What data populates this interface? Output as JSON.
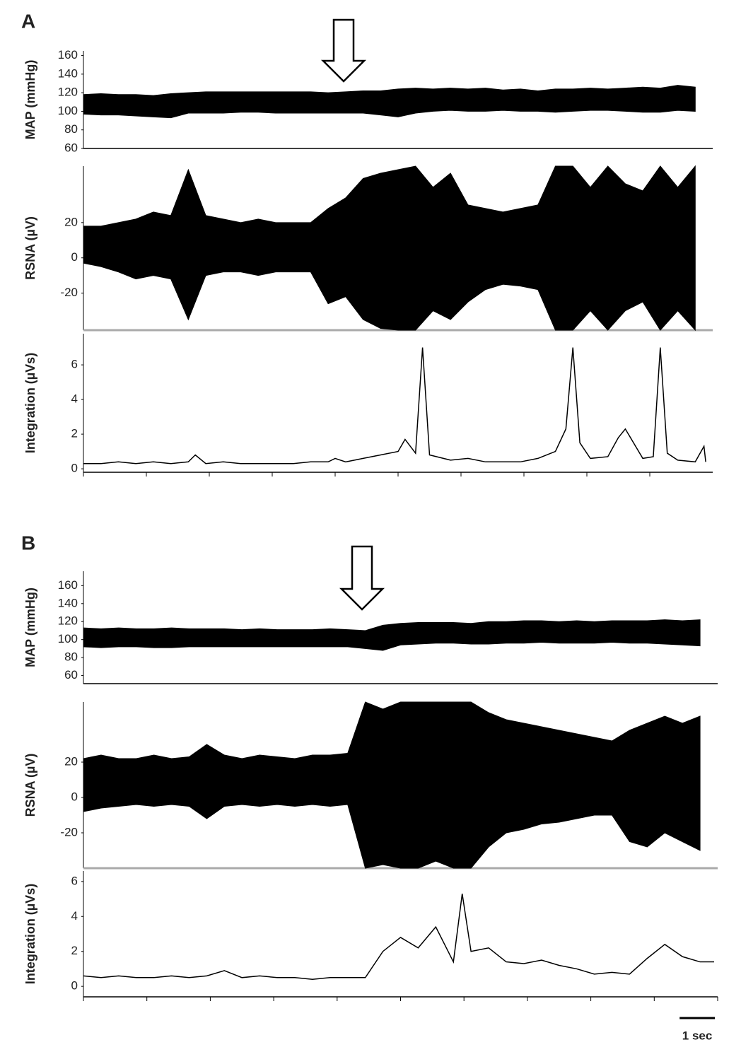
{
  "panel_labels": [
    "A",
    "B"
  ],
  "scale_bar": {
    "value": 1,
    "label": "1 sec"
  },
  "chart_data": [
    {
      "type": "band",
      "y_label": "MAP (mmHg)",
      "xlim": [
        0,
        18
      ],
      "ylim": [
        60,
        165
      ],
      "yticks": [
        60,
        80,
        100,
        120,
        140,
        160
      ],
      "x": [
        0,
        0.5,
        1,
        1.5,
        2,
        2.5,
        3,
        3.5,
        4,
        4.5,
        5,
        5.5,
        6,
        6.5,
        7,
        7.5,
        8,
        8.5,
        9,
        9.5,
        10,
        10.5,
        11,
        11.5,
        12,
        12.5,
        13,
        13.5,
        14,
        14.5,
        15,
        15.5,
        16,
        16.5,
        17,
        17.5
      ],
      "series": [
        {
          "color": "#000000",
          "values": [
            118,
            119,
            118,
            118,
            117,
            119,
            120,
            121,
            121,
            121,
            121,
            121,
            121,
            121,
            120,
            121,
            122,
            122,
            124,
            125,
            124,
            125,
            124,
            125,
            123,
            124,
            122,
            124,
            124,
            125,
            124,
            125,
            126,
            125,
            128,
            126
          ]
        },
        {
          "color": "#000000",
          "values": [
            97,
            96,
            96,
            95,
            94,
            93,
            98,
            98,
            98,
            99,
            99,
            98,
            98,
            98,
            98,
            98,
            98,
            96,
            94,
            98,
            100,
            101,
            100,
            100,
            101,
            100,
            100,
            99,
            100,
            101,
            101,
            100,
            99,
            99,
            101,
            100
          ]
        }
      ]
    },
    {
      "type": "band",
      "y_label": "RSNA (µV)",
      "xlim": [
        0,
        18
      ],
      "ylim": [
        -41,
        52
      ],
      "yticks": [
        -20,
        0,
        20
      ],
      "x": [
        0,
        0.5,
        1,
        1.5,
        2,
        2.5,
        3,
        3.5,
        4,
        4.5,
        5,
        5.5,
        6,
        6.5,
        7,
        7.5,
        8,
        8.5,
        9,
        9.5,
        10,
        10.5,
        11,
        11.5,
        12,
        12.5,
        13,
        13.5,
        14,
        14.5,
        15,
        15.5,
        16,
        16.5,
        17,
        17.5
      ],
      "series": [
        {
          "color": "#000000",
          "values": [
            18,
            18,
            20,
            22,
            26,
            24,
            50,
            24,
            22,
            20,
            22,
            20,
            20,
            20,
            28,
            34,
            45,
            48,
            50,
            52,
            40,
            48,
            30,
            28,
            26,
            28,
            30,
            52,
            52,
            40,
            52,
            42,
            38,
            52,
            40,
            52
          ]
        },
        {
          "color": "#000000",
          "values": [
            -3,
            -5,
            -8,
            -12,
            -10,
            -12,
            -35,
            -10,
            -8,
            -8,
            -10,
            -8,
            -8,
            -8,
            -26,
            -22,
            -35,
            -40,
            -41,
            -41,
            -30,
            -35,
            -25,
            -18,
            -15,
            -16,
            -18,
            -41,
            -41,
            -30,
            -41,
            -30,
            -25,
            -41,
            -30,
            -41
          ]
        }
      ]
    },
    {
      "type": "line",
      "y_label": "Integration (µVs)",
      "xlim": [
        0,
        18
      ],
      "ylim": [
        -0.2,
        7.8
      ],
      "yticks": [
        0,
        2,
        4,
        6
      ],
      "xticks": [
        0,
        1.8,
        3.6,
        5.4,
        7.2,
        9,
        10.8,
        12.6,
        14.4,
        16.2
      ],
      "x": [
        0,
        0.5,
        1,
        1.5,
        2,
        2.5,
        3,
        3.2,
        3.5,
        4,
        4.5,
        5,
        5.5,
        6,
        6.5,
        7,
        7.2,
        7.5,
        8,
        8.5,
        9,
        9.2,
        9.5,
        9.7,
        9.9,
        10.5,
        11,
        11.5,
        12,
        12.5,
        13,
        13.5,
        13.8,
        14.0,
        14.2,
        14.5,
        15,
        15.3,
        15.5,
        16,
        16.3,
        16.5,
        16.7,
        17,
        17.5,
        17.75,
        17.8
      ],
      "series": [
        {
          "color": "#000000",
          "values": [
            0.3,
            0.3,
            0.4,
            0.3,
            0.4,
            0.3,
            0.4,
            0.8,
            0.3,
            0.4,
            0.3,
            0.3,
            0.3,
            0.3,
            0.4,
            0.4,
            0.6,
            0.4,
            0.6,
            0.8,
            1.0,
            1.7,
            0.9,
            7.0,
            0.8,
            0.5,
            0.6,
            0.4,
            0.4,
            0.4,
            0.6,
            1.0,
            2.3,
            7.0,
            1.5,
            0.6,
            0.7,
            1.8,
            2.3,
            0.6,
            0.7,
            7.0,
            0.9,
            0.5,
            0.4,
            1.3,
            0.4
          ]
        }
      ]
    },
    {
      "type": "band",
      "y_label": "MAP (mmHg)",
      "xlim": [
        0,
        18
      ],
      "ylim": [
        51,
        176
      ],
      "yticks": [
        60,
        80,
        100,
        120,
        140,
        160
      ],
      "x": [
        0,
        0.5,
        1,
        1.5,
        2,
        2.5,
        3,
        3.5,
        4,
        4.5,
        5,
        5.5,
        6,
        6.5,
        7,
        7.5,
        8,
        8.5,
        9,
        9.5,
        10,
        10.5,
        11,
        11.5,
        12,
        12.5,
        13,
        13.5,
        14,
        14.5,
        15,
        15.5,
        16,
        16.5,
        17,
        17.5
      ],
      "series": [
        {
          "color": "#000000",
          "values": [
            113,
            112,
            113,
            112,
            112,
            113,
            112,
            112,
            112,
            111,
            112,
            111,
            111,
            111,
            112,
            111,
            110,
            116,
            118,
            119,
            119,
            119,
            118,
            120,
            120,
            121,
            121,
            120,
            121,
            120,
            121,
            121,
            121,
            122,
            121,
            122
          ]
        },
        {
          "color": "#000000",
          "values": [
            92,
            91,
            92,
            92,
            91,
            91,
            92,
            92,
            92,
            92,
            92,
            92,
            92,
            92,
            92,
            92,
            90,
            88,
            94,
            95,
            96,
            96,
            95,
            95,
            96,
            96,
            97,
            96,
            96,
            96,
            97,
            96,
            96,
            95,
            94,
            93
          ]
        }
      ]
    },
    {
      "type": "band",
      "y_label": "RSNA (µV)",
      "xlim": [
        0,
        18
      ],
      "ylim": [
        -40,
        54
      ],
      "yticks": [
        -20,
        0,
        20
      ],
      "x": [
        0,
        0.5,
        1,
        1.5,
        2,
        2.5,
        3,
        3.5,
        4,
        4.5,
        5,
        5.5,
        6,
        6.5,
        7,
        7.5,
        8,
        8.5,
        9,
        9.5,
        10,
        10.5,
        11,
        11.5,
        12,
        12.5,
        13,
        13.5,
        14,
        14.5,
        15,
        15.5,
        16,
        16.5,
        17,
        17.5
      ],
      "series": [
        {
          "color": "#000000",
          "values": [
            22,
            24,
            22,
            22,
            24,
            22,
            23,
            30,
            24,
            22,
            24,
            23,
            22,
            24,
            24,
            25,
            54,
            50,
            54,
            54,
            54,
            54,
            54,
            48,
            44,
            42,
            40,
            38,
            36,
            34,
            32,
            38,
            42,
            46,
            42,
            46
          ]
        },
        {
          "color": "#000000",
          "values": [
            -8,
            -6,
            -5,
            -4,
            -5,
            -4,
            -5,
            -12,
            -5,
            -4,
            -5,
            -4,
            -5,
            -4,
            -5,
            -4,
            -40,
            -38,
            -40,
            -40,
            -36,
            -40,
            -40,
            -28,
            -20,
            -18,
            -15,
            -14,
            -12,
            -10,
            -10,
            -25,
            -28,
            -20,
            -25,
            -30
          ]
        }
      ]
    },
    {
      "type": "line",
      "y_label": "Integration (µVs)",
      "xlim": [
        0,
        18
      ],
      "ylim": [
        -0.6,
        6.6
      ],
      "yticks": [
        0,
        2,
        4,
        6
      ],
      "xticks": [
        0,
        1.8,
        3.6,
        5.4,
        7.2,
        9,
        10.8,
        12.6,
        14.4,
        16.2,
        18
      ],
      "x": [
        0,
        0.5,
        1,
        1.5,
        2,
        2.5,
        3,
        3.5,
        4,
        4.5,
        5,
        5.5,
        6,
        6.5,
        7,
        7.5,
        8,
        8.5,
        9,
        9.5,
        10,
        10.5,
        10.75,
        11,
        11.5,
        12,
        12.5,
        13,
        13.5,
        14,
        14.5,
        15,
        15.5,
        16,
        16.5,
        17,
        17.5,
        17.9
      ],
      "series": [
        {
          "color": "#000000",
          "values": [
            0.6,
            0.5,
            0.6,
            0.5,
            0.5,
            0.6,
            0.5,
            0.6,
            0.9,
            0.5,
            0.6,
            0.5,
            0.5,
            0.4,
            0.5,
            0.5,
            0.5,
            2.0,
            2.8,
            2.2,
            3.4,
            1.4,
            5.3,
            2.0,
            2.2,
            1.4,
            1.3,
            1.5,
            1.2,
            1.0,
            0.7,
            0.8,
            0.7,
            1.6,
            2.4,
            1.7,
            1.4,
            1.4
          ]
        }
      ]
    }
  ]
}
